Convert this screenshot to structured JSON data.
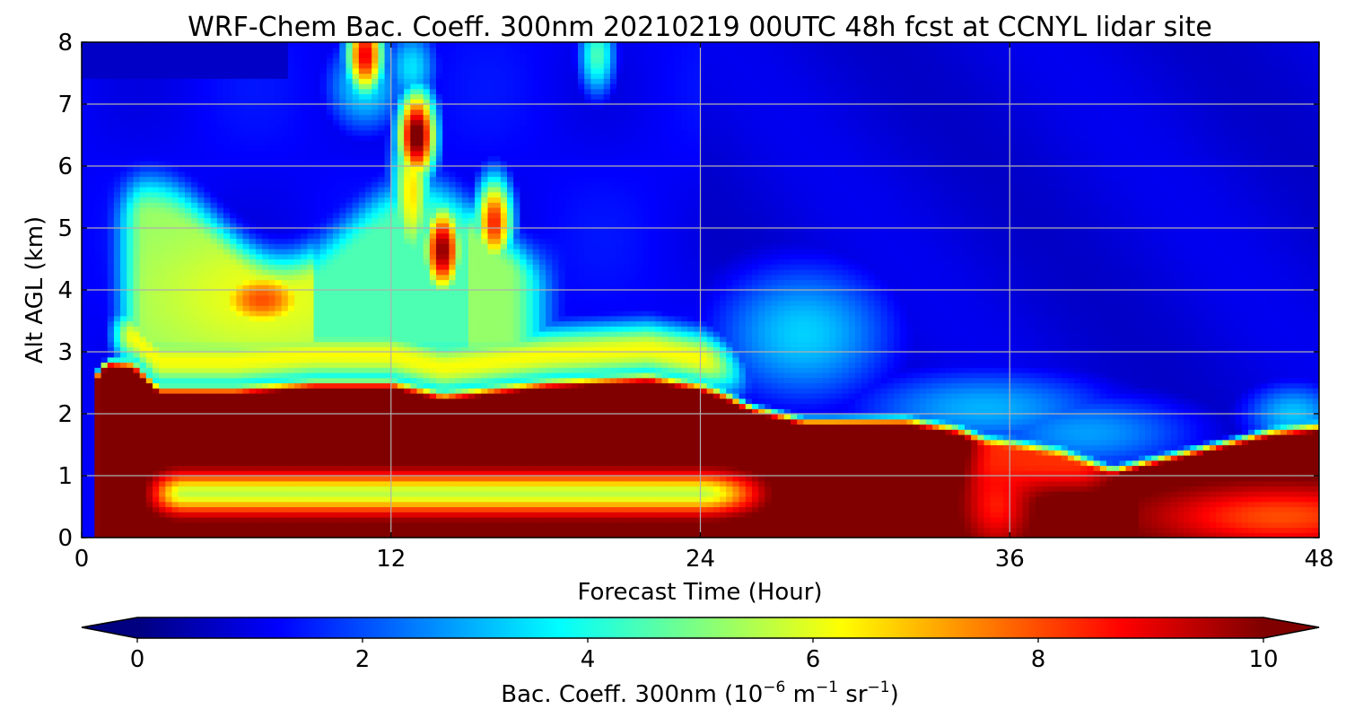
{
  "chart_data": {
    "type": "heatmap",
    "title": "WRF-Chem Bac. Coeff. 300nm  20210219 00UTC 48h fcst at CCNYL lidar site",
    "xlabel": "Forecast Time (Hour)",
    "ylabel": "Alt AGL (km)",
    "xlim": [
      0,
      48
    ],
    "ylim": [
      0,
      8
    ],
    "x_ticks": [
      0,
      12,
      24,
      36,
      48
    ],
    "y_ticks": [
      0,
      1,
      2,
      3,
      4,
      5,
      6,
      7,
      8
    ],
    "grid": true,
    "colorbar": {
      "label_main": "Bac. Coeff. 300nm  (10",
      "label_exp1": "−6",
      "label_mid": " m",
      "label_exp2": "−1",
      "label_mid2": " sr",
      "label_exp3": "−1",
      "label_end": ")",
      "range": [
        -0.5,
        10.5
      ],
      "levels": [
        0,
        10
      ],
      "ticks": [
        0,
        2,
        4,
        6,
        8,
        10
      ],
      "extend": "both",
      "colormap": "jet",
      "orientation": "horizontal"
    },
    "x": [
      0,
      0.5,
      1,
      2,
      3,
      4,
      5,
      6,
      7,
      8,
      9,
      10,
      11,
      12,
      13,
      14,
      15,
      16,
      17,
      18,
      20,
      22,
      24,
      26,
      28,
      30,
      32,
      34,
      35,
      36,
      38,
      40,
      42,
      44,
      46,
      48
    ],
    "y": [
      0,
      0.25,
      0.5,
      0.75,
      1,
      1.25,
      1.5,
      1.75,
      2,
      2.25,
      2.5,
      2.75,
      3,
      3.25,
      3.5,
      3.75,
      4,
      4.25,
      4.5,
      4.75,
      5,
      5.25,
      5.5,
      5.75,
      6,
      6.25,
      6.5,
      6.75,
      7,
      7.25,
      7.5,
      7.75,
      8
    ],
    "features": [
      {
        "kind": "boundary_layer",
        "x_start": 0.5,
        "x_end": 48,
        "top_km": [
          [
            0.5,
            2.6
          ],
          [
            1,
            2.85
          ],
          [
            2,
            2.8
          ],
          [
            3,
            2.4
          ],
          [
            6,
            2.4
          ],
          [
            9,
            2.5
          ],
          [
            12,
            2.5
          ],
          [
            14,
            2.3
          ],
          [
            18,
            2.5
          ],
          [
            22,
            2.6
          ],
          [
            24,
            2.45
          ],
          [
            25,
            2.3
          ],
          [
            26,
            2.1
          ],
          [
            28,
            1.9
          ],
          [
            32,
            1.9
          ],
          [
            34,
            1.75
          ],
          [
            35,
            1.6
          ],
          [
            36,
            1.55
          ],
          [
            38,
            1.4
          ],
          [
            40,
            1.1
          ],
          [
            42,
            1.3
          ],
          [
            44,
            1.5
          ],
          [
            46,
            1.7
          ],
          [
            48,
            1.8
          ]
        ],
        "value": 10.5
      },
      {
        "kind": "elevated_layer",
        "x_start": 1,
        "x_end": 27,
        "center_km": 0.75,
        "thickness_km": 0.4,
        "value": 6
      },
      {
        "kind": "lofted_plume",
        "x_start": 1,
        "x_end": 18,
        "center_km": 4.2,
        "value": 5.5
      },
      {
        "kind": "plume_core",
        "x": 7,
        "y": 3.85,
        "value": 8
      },
      {
        "kind": "plume_core",
        "x": 13,
        "y": 6.5,
        "value": 10.5
      },
      {
        "kind": "plume_core",
        "x": 14,
        "y": 4.65,
        "value": 10
      },
      {
        "kind": "plume_core",
        "x": 16,
        "y": 5.1,
        "value": 8.5
      },
      {
        "kind": "plume_core",
        "x": 11,
        "y": 7.8,
        "value": 9
      },
      {
        "kind": "plume_core",
        "x": 20,
        "y": 7.8,
        "value": 4.5
      },
      {
        "kind": "diffuse_patch",
        "x": 28,
        "y": 3.3,
        "value": 3.3
      },
      {
        "kind": "surface_patch",
        "x": 35.5,
        "y": 1.2,
        "value": 8.5
      },
      {
        "kind": "surface_patch",
        "x": 45,
        "y": 0.4,
        "value": 8
      }
    ]
  }
}
